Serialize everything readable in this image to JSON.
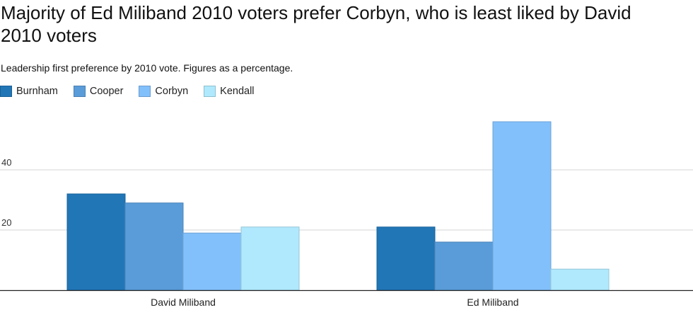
{
  "chart_data": {
    "type": "bar",
    "title": "Majority of Ed Miliband 2010 voters prefer Corbyn, who is least liked by David\n2010 voters",
    "subtitle": "Leadership first preference by 2010 vote. Figures as a percentage.",
    "xlabel": "",
    "ylabel": "",
    "categories": [
      "David Miliband",
      "Ed Miliband"
    ],
    "series": [
      {
        "name": "Burnham",
        "color": "#2176b6",
        "values": [
          32,
          21
        ]
      },
      {
        "name": "Cooper",
        "color": "#5a9cd9",
        "values": [
          29,
          16
        ]
      },
      {
        "name": "Corbyn",
        "color": "#82c0fb",
        "values": [
          19,
          56
        ]
      },
      {
        "name": "Kendall",
        "color": "#b0e9fd",
        "values": [
          21,
          7
        ]
      }
    ],
    "y_ticks": [
      "20",
      "40"
    ],
    "ylim": [
      0,
      58
    ],
    "grid": true,
    "legend_position": "top-left"
  }
}
